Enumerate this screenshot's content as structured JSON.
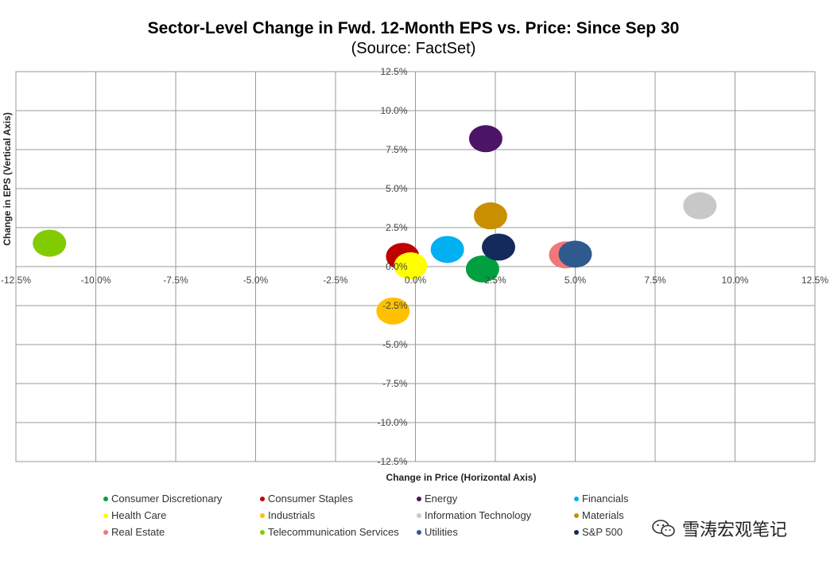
{
  "chart_data": {
    "type": "scatter",
    "title": "Sector-Level Change in Fwd. 12-Month EPS vs. Price: Since Sep 30",
    "subtitle": "(Source: FactSet)",
    "xlabel": "Change in Price (Horizontal Axis)",
    "ylabel": "Change in EPS (Vertical Axis)",
    "xlim": [
      -12.5,
      12.5
    ],
    "ylim": [
      -12.5,
      12.5
    ],
    "x_ticks": [
      "-12.5%",
      "-10.0%",
      "-7.5%",
      "-5.0%",
      "-2.5%",
      "0.0%",
      "2.5%",
      "5.0%",
      "7.5%",
      "10.0%",
      "12.5%"
    ],
    "y_ticks": [
      "12.5%",
      "10.0%",
      "7.5%",
      "5.0%",
      "2.5%",
      "0.0%",
      "-2.5%",
      "-5.0%",
      "-7.5%",
      "-10.0%",
      "-12.5%"
    ],
    "grid": true,
    "legend_position": "bottom",
    "series": [
      {
        "name": "Consumer Discretionary",
        "x": 2.1,
        "y": -0.15,
        "color": "#00A040"
      },
      {
        "name": "Consumer Staples",
        "x": -0.4,
        "y": 0.65,
        "color": "#C00000"
      },
      {
        "name": "Energy",
        "x": 2.2,
        "y": 8.2,
        "color": "#4B1466"
      },
      {
        "name": "Financials",
        "x": 1.0,
        "y": 1.1,
        "color": "#00B0F0"
      },
      {
        "name": "Health Care",
        "x": -0.15,
        "y": 0.05,
        "color": "#FFFF00"
      },
      {
        "name": "Industrials",
        "x": -0.7,
        "y": -2.85,
        "color": "#FFC000"
      },
      {
        "name": "Information Technology",
        "x": 8.9,
        "y": 3.9,
        "color": "#C8C8C8"
      },
      {
        "name": "Materials",
        "x": 2.35,
        "y": 3.25,
        "color": "#C89000"
      },
      {
        "name": "Real Estate",
        "x": 4.7,
        "y": 0.75,
        "color": "#F07878"
      },
      {
        "name": "Telecommunication Services",
        "x": -11.45,
        "y": 1.5,
        "color": "#80CC00"
      },
      {
        "name": "Utilities",
        "x": 5.0,
        "y": 0.8,
        "color": "#2E5A8E"
      },
      {
        "name": "S&P 500",
        "x": 2.6,
        "y": 1.25,
        "color": "#132A5A"
      }
    ]
  },
  "watermark": {
    "text": "雪涛宏观笔记",
    "icon": "wechat-icon"
  }
}
